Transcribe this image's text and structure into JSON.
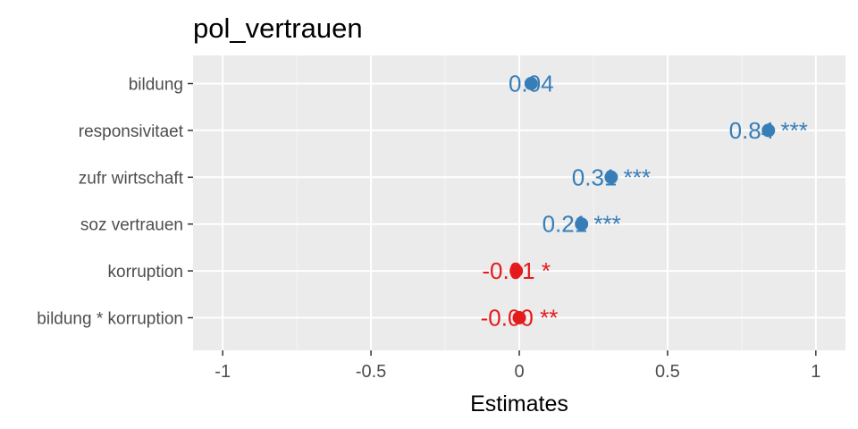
{
  "chart_data": {
    "type": "scatter",
    "title": "pol_vertrauen",
    "xlabel": "Estimates",
    "ylabel": "",
    "xlim": [
      -1.1,
      1.1
    ],
    "x_ticks": [
      -1,
      -0.5,
      0,
      0.5,
      1
    ],
    "x_tick_labels": [
      "-1",
      "-0.5",
      "0",
      "0.5",
      "1"
    ],
    "grid": true,
    "categories": [
      "bildung",
      "responsivitaet",
      "zufr wirtschaft",
      "soz vertrauen",
      "korruption",
      "bildung * korruption"
    ],
    "values": [
      0.04,
      0.84,
      0.31,
      0.21,
      -0.01,
      -0.0
    ],
    "labels": [
      "0.04",
      "0.84 ***",
      "0.31 ***",
      "0.21 ***",
      "-0.01 *",
      "-0.00 **"
    ],
    "colors": {
      "positive": "#377eb8",
      "negative": "#e41a1c",
      "panel_background": "#ebebeb",
      "grid_major": "#ffffff",
      "grid_minor": "#f5f5f5"
    }
  }
}
